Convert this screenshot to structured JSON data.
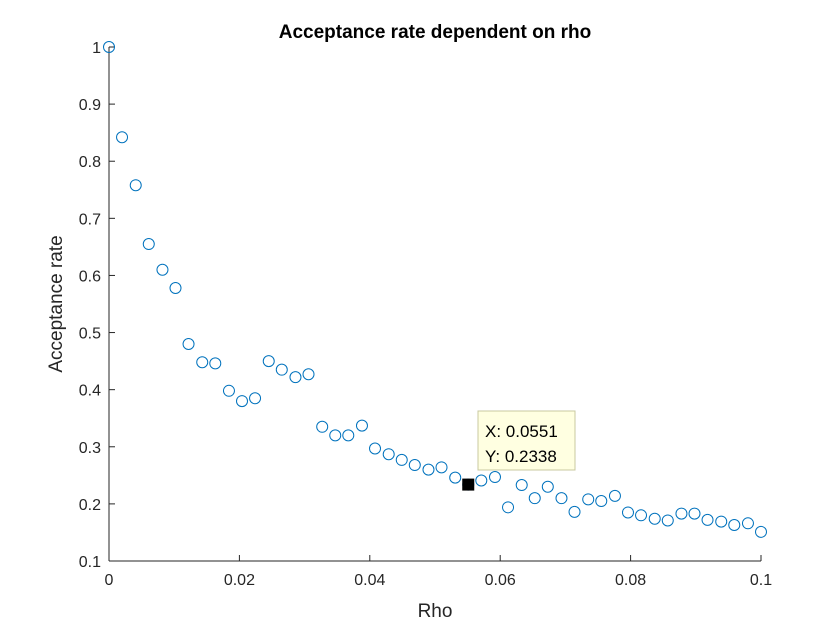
{
  "chart_data": {
    "type": "scatter",
    "title": "Acceptance rate dependent on rho",
    "xlabel": "Rho",
    "ylabel": "Acceptance rate",
    "xlim": [
      0,
      0.1
    ],
    "ylim": [
      0.1,
      1
    ],
    "xticks": [
      0,
      0.02,
      0.04,
      0.06,
      0.08,
      0.1
    ],
    "xtick_labels": [
      "0",
      "0.02",
      "0.04",
      "0.06",
      "0.08",
      "0.1"
    ],
    "yticks": [
      0.1,
      0.2,
      0.3,
      0.4,
      0.5,
      0.6,
      0.7,
      0.8,
      0.9,
      1
    ],
    "ytick_labels": [
      "0.1",
      "0.2",
      "0.3",
      "0.4",
      "0.5",
      "0.6",
      "0.7",
      "0.8",
      "0.9",
      "1"
    ],
    "grid": false,
    "marker_color": "#0072BD",
    "x": [
      0,
      0.002,
      0.0041,
      0.0061,
      0.0082,
      0.0102,
      0.0122,
      0.0143,
      0.0163,
      0.0184,
      0.0204,
      0.0224,
      0.0245,
      0.0265,
      0.0286,
      0.0306,
      0.0327,
      0.0347,
      0.0367,
      0.0388,
      0.0408,
      0.0429,
      0.0449,
      0.0469,
      0.049,
      0.051,
      0.0531,
      0.0551,
      0.0571,
      0.0592,
      0.0612,
      0.0633,
      0.0653,
      0.0673,
      0.0694,
      0.0714,
      0.0735,
      0.0755,
      0.0776,
      0.0796,
      0.0816,
      0.0837,
      0.0857,
      0.0878,
      0.0898,
      0.0918,
      0.0939,
      0.0959,
      0.098,
      0.1
    ],
    "y": [
      1.0,
      0.842,
      0.758,
      0.655,
      0.61,
      0.578,
      0.48,
      0.448,
      0.446,
      0.398,
      0.38,
      0.385,
      0.45,
      0.435,
      0.422,
      0.427,
      0.335,
      0.32,
      0.32,
      0.337,
      0.297,
      0.287,
      0.277,
      0.268,
      0.26,
      0.264,
      0.246,
      0.2338,
      0.241,
      0.247,
      0.194,
      0.233,
      0.21,
      0.23,
      0.21,
      0.186,
      0.208,
      0.205,
      0.214,
      0.185,
      0.18,
      0.174,
      0.171,
      0.183,
      0.183,
      0.172,
      0.169,
      0.163,
      0.166,
      0.151
    ],
    "datatip": {
      "x": 0.0551,
      "y": 0.2338,
      "x_text": "X: 0.0551",
      "y_text": "Y: 0.2338"
    }
  }
}
